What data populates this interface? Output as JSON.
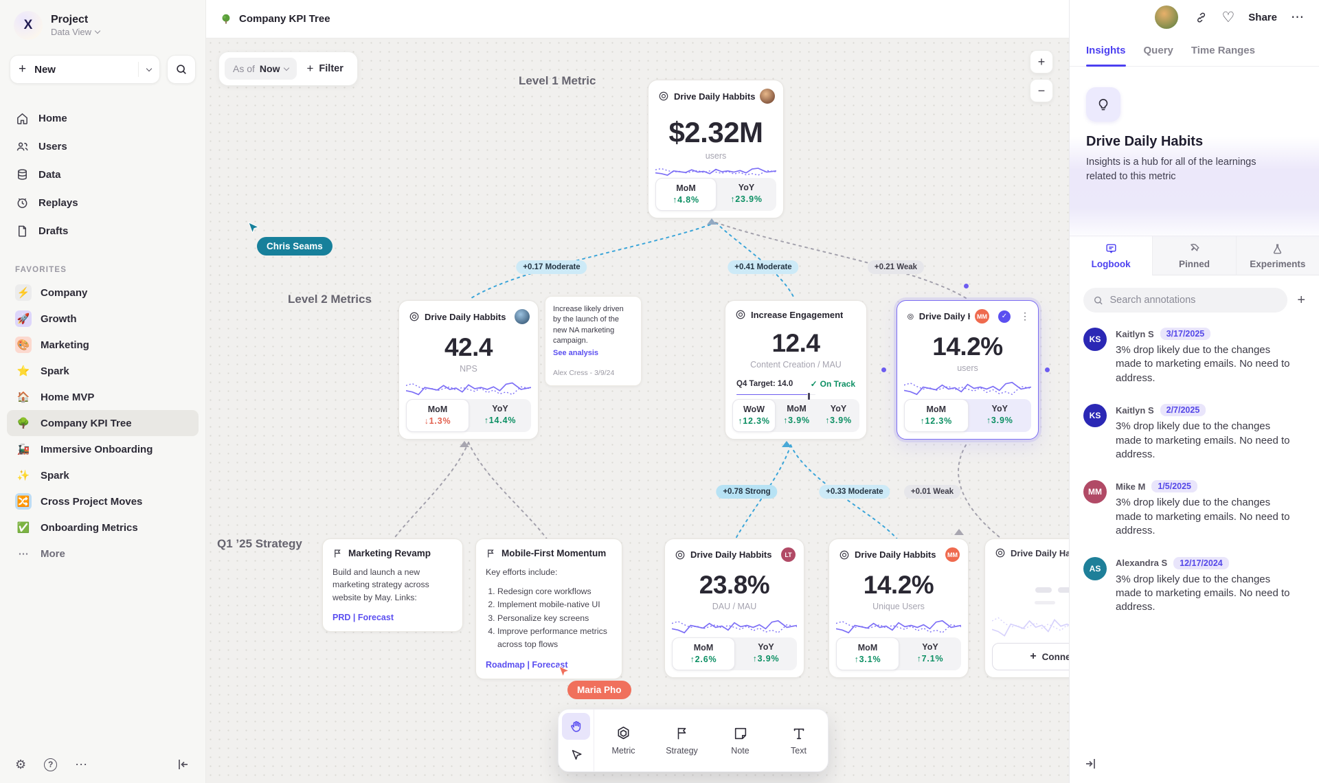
{
  "colors": {
    "accent": "#5b4ff0",
    "green": "#0c8f63",
    "red": "#e2604e",
    "edge_blue": "#38a3d8",
    "cursor_teal": "#17809b",
    "cursor_coral": "#f0705c",
    "selected_border": "#7b6cf3",
    "sparkline": "#7c6ef6"
  },
  "icons": {
    "plus": "+",
    "minus": "−",
    "heart": "♡",
    "more": "⋯",
    "kebab": "⋮",
    "gear": "⚙",
    "help": "?",
    "check": "✓"
  },
  "sidebar": {
    "project": {
      "name": "Project",
      "view": "Data View"
    },
    "new_label": "New",
    "nav": [
      {
        "label": "Home"
      },
      {
        "label": "Users"
      },
      {
        "label": "Data"
      },
      {
        "label": "Replays"
      },
      {
        "label": "Drafts"
      }
    ],
    "favorites_label": "FAVORITES",
    "favorites": [
      {
        "icon": "⚡",
        "label": "Company",
        "bg": "#ececec"
      },
      {
        "icon": "🚀",
        "label": "Growth",
        "bg": "#ddd6fb"
      },
      {
        "icon": "🎨",
        "label": "Marketing",
        "bg": "#fcd9cf"
      },
      {
        "icon": "⭐",
        "label": "Spark",
        "bg": ""
      },
      {
        "icon": "🏠",
        "label": "Home MVP",
        "bg": ""
      },
      {
        "icon": "🌳",
        "label": "Company KPI Tree",
        "bg": ""
      },
      {
        "icon": "🚂",
        "label": "Immersive Onboarding",
        "bg": ""
      },
      {
        "icon": "✨",
        "label": "Spark",
        "bg": ""
      },
      {
        "icon": "🔀",
        "label": "Cross Project Moves",
        "bg": "#bdddf5"
      },
      {
        "icon": "✅",
        "label": "Onboarding Metrics",
        "bg": ""
      }
    ],
    "more_label": "More"
  },
  "topbar": {
    "title": "Company KPI Tree",
    "share_label": "Share"
  },
  "canvas": {
    "asof": {
      "prefix": "As of",
      "value": "Now"
    },
    "filter_label": "Filter",
    "labels": {
      "level1": "Level 1 Metric",
      "level2": "Level 2 Metrics",
      "strategy": "Q1 ’25 Strategy"
    },
    "cursors": [
      {
        "name": "Chris Seams"
      },
      {
        "name": "Maria Pho"
      }
    ],
    "edges": [
      {
        "label": "+0.17 Moderate"
      },
      {
        "label": "+0.41 Moderate"
      },
      {
        "label": "+0.21 Weak"
      },
      {
        "label": "+0.78 Strong"
      },
      {
        "label": "+0.33 Moderate"
      },
      {
        "label": "+0.01 Weak"
      }
    ],
    "cards": {
      "l1": {
        "title": "Drive Daily Habbits",
        "value": "$2.32M",
        "unit": "users",
        "stats": [
          {
            "label": "MoM",
            "value": "↑4.8%"
          },
          {
            "label": "YoY",
            "value": "↑23.9%"
          }
        ]
      },
      "nps": {
        "title": "Drive Daily Habbits",
        "value": "42.4",
        "unit": "NPS",
        "stats": [
          {
            "label": "MoM",
            "value": "↓1.3%"
          },
          {
            "label": "YoY",
            "value": "↑14.4%"
          }
        ]
      },
      "note": {
        "text": "Increase likely driven by the launch of the new NA marketing campaign.",
        "link": "See analysis",
        "author": "Alex Cress - 3/9/24"
      },
      "engagement": {
        "title": "Increase Engagement",
        "value": "12.4",
        "unit": "Content Creation / MAU",
        "target": "Q4 Target: 14.0",
        "status": "On Track",
        "stats": [
          {
            "label": "WoW",
            "value": "↑12.3%"
          },
          {
            "label": "MoM",
            "value": "↑3.9%"
          },
          {
            "label": "YoY",
            "value": "↑3.9%"
          }
        ]
      },
      "selected": {
        "title": "Drive Daily Habb..",
        "badge": "MM",
        "value": "14.2%",
        "unit": "users",
        "stats": [
          {
            "label": "MoM",
            "value": "↑12.3%"
          },
          {
            "label": "YoY",
            "value": "↑3.9%"
          }
        ]
      },
      "dau": {
        "title": "Drive Daily Habbits",
        "badge": "LT",
        "value": "23.8%",
        "unit": "DAU / MAU",
        "stats": [
          {
            "label": "MoM",
            "value": "↑2.6%"
          },
          {
            "label": "YoY",
            "value": "↑3.9%"
          }
        ]
      },
      "unique": {
        "title": "Drive Daily Habbits",
        "badge": "MM",
        "value": "14.2%",
        "unit": "Unique Users",
        "stats": [
          {
            "label": "MoM",
            "value": "↑3.1%"
          },
          {
            "label": "YoY",
            "value": "↑7.1%"
          }
        ]
      },
      "ghost": {
        "title": "Drive Daily Hab",
        "connect_label": "Connect"
      },
      "marketing": {
        "title": "Marketing Revamp",
        "body": "Build and launch a new marketing strategy across website by May. Links:",
        "links": [
          "PRD",
          "Forecast"
        ],
        "sep": "|"
      },
      "mobile": {
        "title": "Mobile-First Momentum",
        "intro": "Key efforts include:",
        "items": [
          "Redesign core workflows",
          "Implement mobile-native UI",
          "Personalize key screens",
          "Improve performance metrics across top flows"
        ],
        "links": [
          "Roadmap",
          "Forecast"
        ],
        "sep": "|"
      }
    },
    "toolbar": {
      "tools": [
        {
          "label": "Metric"
        },
        {
          "label": "Strategy"
        },
        {
          "label": "Note"
        },
        {
          "label": "Text"
        }
      ]
    }
  },
  "insights": {
    "tabs": [
      {
        "label": "Insights"
      },
      {
        "label": "Query"
      },
      {
        "label": "Time Ranges"
      }
    ],
    "title": "Drive Daily Habits",
    "description": "Insights is a hub for all of the learnings related to this metric",
    "sections": [
      {
        "label": "Logbook"
      },
      {
        "label": "Pinned"
      },
      {
        "label": "Experiments"
      }
    ],
    "search_placeholder": "Search annotations",
    "annotations": [
      {
        "initials": "KS",
        "name": "Kaitlyn S",
        "date": "3/17/2025",
        "color": "#2b28b5",
        "text": "3% drop likely due to the changes made to marketing emails. No need to address."
      },
      {
        "initials": "KS",
        "name": "Kaitlyn S",
        "date": "2/7/2025",
        "color": "#2b28b5",
        "text": "3% drop likely due to the changes made to marketing emails. No need to address."
      },
      {
        "initials": "MM",
        "name": "Mike M",
        "date": "1/5/2025",
        "color": "#b14a66",
        "text": "3% drop likely due to the changes made to marketing emails. No need to address."
      },
      {
        "initials": "AS",
        "name": "Alexandra S",
        "date": "12/17/2024",
        "color": "#1e7f99",
        "text": "3% drop likely due to the changes made to marketing emails. No need to address."
      }
    ]
  }
}
